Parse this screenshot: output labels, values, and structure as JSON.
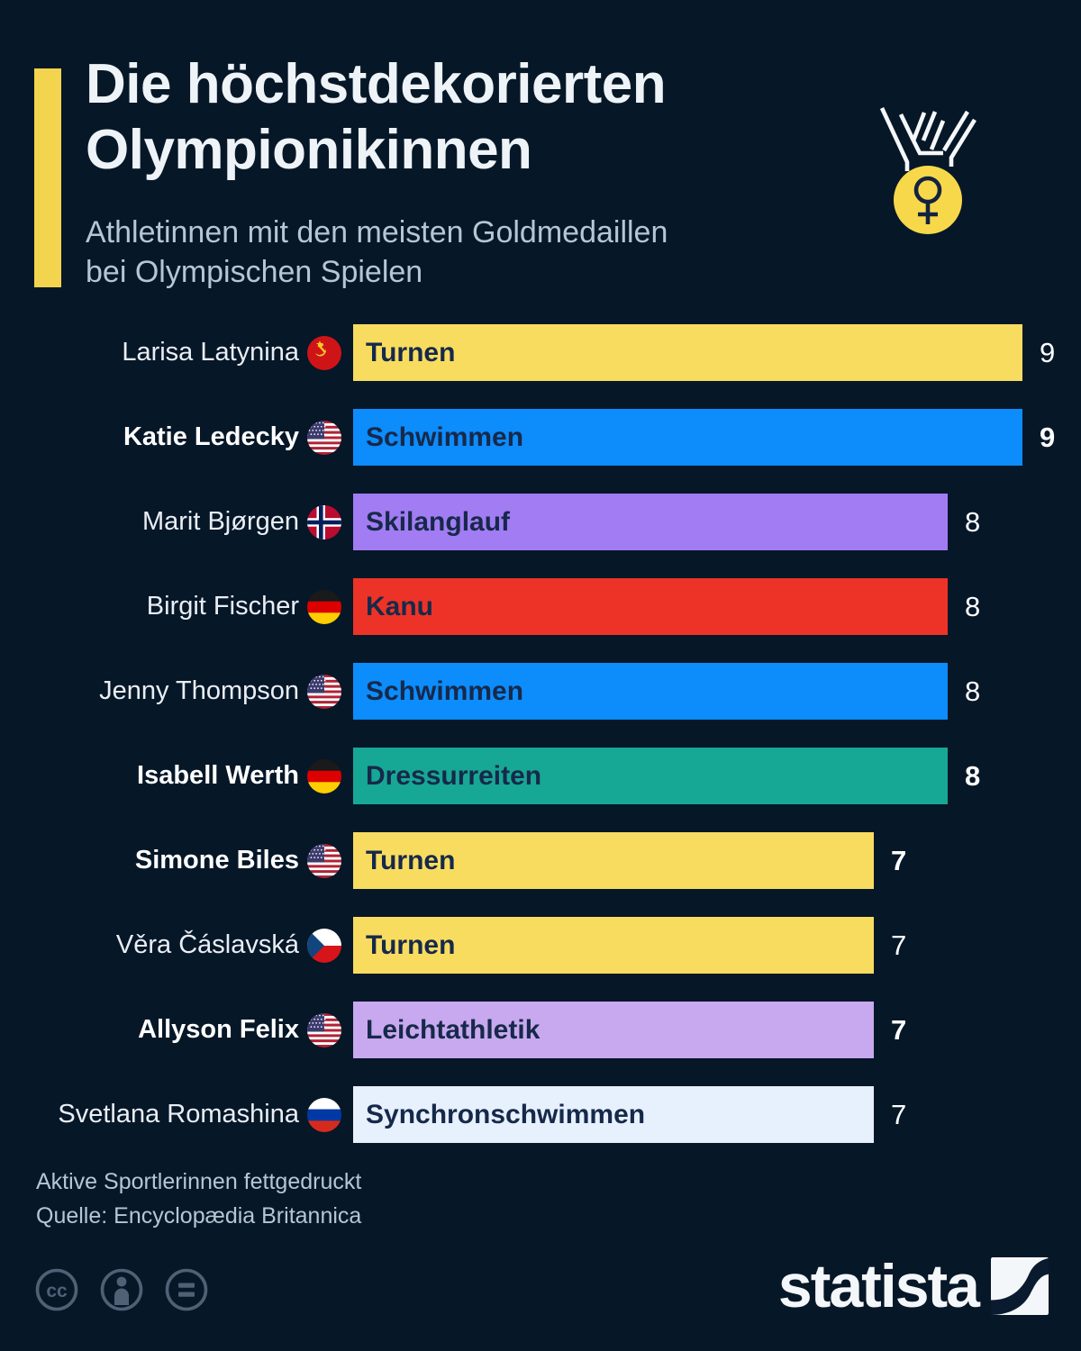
{
  "header": {
    "title_line1": "Die höchstdekorierten",
    "title_line2": "Olympionikinnen",
    "subtitle_line1": "Athletinnen mit den meisten Goldmedaillen",
    "subtitle_line2": "bei Olympischen Spielen",
    "medal_icon": "gold-medal-with-female-symbol",
    "accent_color": "#f2d44e"
  },
  "chart_data": {
    "type": "bar",
    "orientation": "horizontal",
    "title": "Die höchstdekorierten Olympionikinnen",
    "subtitle": "Athletinnen mit den meisten Goldmedaillen bei Olympischen Spielen",
    "xlim": [
      0,
      9
    ],
    "grid": false,
    "legend": "none",
    "note": "Aktive Sportlerinnen fettgedruckt (bold = active athlete)",
    "categories": [
      "Larisa Latynina",
      "Katie Ledecky",
      "Marit Bjørgen",
      "Birgit Fischer",
      "Jenny Thompson",
      "Isabell Werth",
      "Simone Biles",
      "Věra Čáslavská",
      "Allyson Felix",
      "Svetlana Romashina"
    ],
    "values": [
      9,
      9,
      8,
      8,
      8,
      8,
      7,
      7,
      7,
      7
    ],
    "rows": [
      {
        "name": "Larisa Latynina",
        "flag": "ussr",
        "sport": "Turnen",
        "value": 9,
        "color": "#f8dc60",
        "active": false
      },
      {
        "name": "Katie Ledecky",
        "flag": "usa",
        "sport": "Schwimmen",
        "value": 9,
        "color": "#0d8cfb",
        "active": true
      },
      {
        "name": "Marit Bjørgen",
        "flag": "norway",
        "sport": "Skilanglauf",
        "value": 8,
        "color": "#a27cf3",
        "active": false
      },
      {
        "name": "Birgit Fischer",
        "flag": "germany",
        "sport": "Kanu",
        "value": 8,
        "color": "#ed3327",
        "active": false
      },
      {
        "name": "Jenny Thompson",
        "flag": "usa",
        "sport": "Schwimmen",
        "value": 8,
        "color": "#0d8cfb",
        "active": false
      },
      {
        "name": "Isabell Werth",
        "flag": "germany",
        "sport": "Dressurreiten",
        "value": 8,
        "color": "#17a795",
        "active": true
      },
      {
        "name": "Simone Biles",
        "flag": "usa",
        "sport": "Turnen",
        "value": 7,
        "color": "#f8dc60",
        "active": true
      },
      {
        "name": "Věra Čáslavská",
        "flag": "czech",
        "sport": "Turnen",
        "value": 7,
        "color": "#f8dc60",
        "active": false
      },
      {
        "name": "Allyson Felix",
        "flag": "usa",
        "sport": "Leichtathletik",
        "value": 7,
        "color": "#c8a8ee",
        "active": true
      },
      {
        "name": "Svetlana Romashina",
        "flag": "russia",
        "sport": "Synchronschwimmen",
        "value": 7,
        "color": "#e7f0fd",
        "active": false
      }
    ]
  },
  "footer": {
    "note": "Aktive Sportlerinnen fettgedruckt",
    "source": "Quelle: Encyclopædia Britannica",
    "brand": "statista",
    "license_icons": [
      "cc-icon",
      "attribution-person-icon",
      "equals-icon"
    ]
  },
  "colors": {
    "background": "#061728",
    "bar_label_text": "#16294a",
    "value_text": "#ffffff",
    "subtitle_text": "#b6c6d3",
    "license_icon": "#4e6175"
  }
}
